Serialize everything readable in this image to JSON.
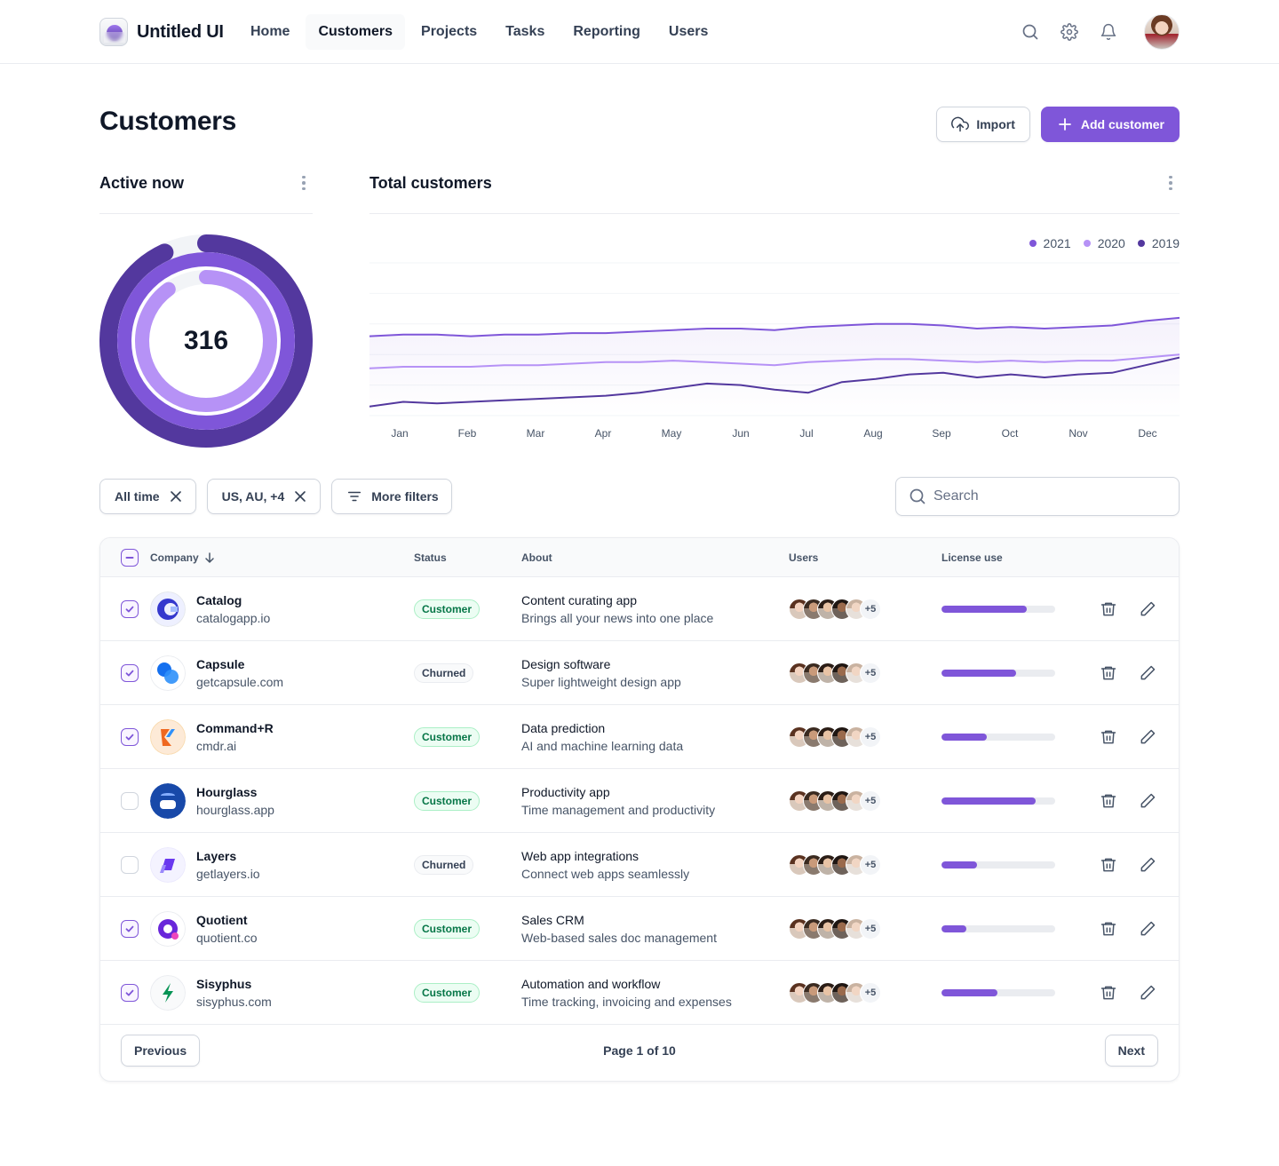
{
  "brand": {
    "name": "Untitled UI"
  },
  "nav": {
    "links": [
      {
        "label": "Home",
        "active": false
      },
      {
        "label": "Customers",
        "active": true
      },
      {
        "label": "Projects",
        "active": false
      },
      {
        "label": "Tasks",
        "active": false
      },
      {
        "label": "Reporting",
        "active": false
      },
      {
        "label": "Users",
        "active": false
      }
    ],
    "icons": [
      "search-icon",
      "gear-icon",
      "bell-icon"
    ]
  },
  "header": {
    "title": "Customers",
    "import_label": "Import",
    "add_label": "Add customer"
  },
  "active_now": {
    "title": "Active now",
    "value": "316",
    "rings": [
      {
        "name": "outer",
        "fraction": 0.93,
        "color": "#53389e"
      },
      {
        "name": "middle",
        "fraction": 0.999,
        "color": "#7f56d9"
      },
      {
        "name": "inner",
        "fraction": 0.9,
        "color": "#b692f6"
      }
    ]
  },
  "total_customers": {
    "title": "Total customers"
  },
  "colors": {
    "accent": "#7f56d9",
    "accent_light": "#b692f6",
    "accent_dark": "#53389e",
    "success_text": "#067647"
  },
  "chart_data": {
    "type": "line",
    "x": [
      "Jan",
      "Jan",
      "Feb",
      "Feb",
      "Mar",
      "Mar",
      "Apr",
      "Apr",
      "May",
      "May",
      "Jun",
      "Jun",
      "Jul",
      "Jul",
      "Aug",
      "Aug",
      "Sep",
      "Sep",
      "Oct",
      "Oct",
      "Nov",
      "Nov",
      "Dec",
      "Dec",
      "Dec"
    ],
    "categories": [
      "Jan",
      "Feb",
      "Mar",
      "Apr",
      "May",
      "Jun",
      "Jul",
      "Aug",
      "Sep",
      "Oct",
      "Nov",
      "Dec"
    ],
    "series": [
      {
        "name": "2021",
        "color": "#7f56d9",
        "values": [
          52,
          53,
          53,
          52,
          53,
          53,
          54,
          54,
          55,
          56,
          57,
          57,
          56,
          58,
          59,
          60,
          60,
          59,
          57,
          58,
          57,
          58,
          59,
          62,
          64
        ]
      },
      {
        "name": "2020",
        "color": "#b692f6",
        "values": [
          31,
          32,
          32,
          32,
          33,
          33,
          34,
          35,
          35,
          36,
          35,
          34,
          33,
          35,
          36,
          37,
          37,
          36,
          35,
          36,
          35,
          36,
          36,
          38,
          40
        ]
      },
      {
        "name": "2019",
        "color": "#53389e",
        "values": [
          6,
          9,
          8,
          9,
          10,
          11,
          12,
          13,
          15,
          18,
          21,
          20,
          17,
          15,
          22,
          24,
          27,
          28,
          25,
          27,
          25,
          27,
          28,
          33,
          38
        ]
      }
    ],
    "ylim": [
      0,
      100
    ],
    "grid": true,
    "legend": "top-right",
    "title": "",
    "xlabel": "",
    "ylabel": ""
  },
  "filters": {
    "chips": [
      {
        "label": "All time",
        "removable": true
      },
      {
        "label": "US, AU, +4",
        "removable": true
      },
      {
        "label": "More filters",
        "removable": false
      }
    ],
    "search_placeholder": "Search"
  },
  "table": {
    "columns": [
      "Company",
      "Status",
      "About",
      "Users",
      "License use"
    ],
    "more_users": "+5",
    "rows": [
      {
        "checked": true,
        "name": "Catalog",
        "domain": "catalogapp.io",
        "status": "Customer",
        "about_title": "Content curating app",
        "about_sub": "Brings all your news into one place",
        "license": 0.75,
        "logo": "catalog-logo-icon"
      },
      {
        "checked": true,
        "name": "Capsule",
        "domain": "getcapsule.com",
        "status": "Churned",
        "about_title": "Design software",
        "about_sub": "Super lightweight design app",
        "license": 0.66,
        "logo": "capsule-logo-icon"
      },
      {
        "checked": true,
        "name": "Command+R",
        "domain": "cmdr.ai",
        "status": "Customer",
        "about_title": "Data prediction",
        "about_sub": "AI and machine learning data",
        "license": 0.4,
        "logo": "commandr-logo-icon"
      },
      {
        "checked": false,
        "name": "Hourglass",
        "domain": "hourglass.app",
        "status": "Customer",
        "about_title": "Productivity app",
        "about_sub": "Time management and productivity",
        "license": 0.83,
        "logo": "hourglass-logo-icon"
      },
      {
        "checked": false,
        "name": "Layers",
        "domain": "getlayers.io",
        "status": "Churned",
        "about_title": "Web app integrations",
        "about_sub": "Connect web apps seamlessly",
        "license": 0.31,
        "logo": "layers-logo-icon"
      },
      {
        "checked": true,
        "name": "Quotient",
        "domain": "quotient.co",
        "status": "Customer",
        "about_title": "Sales CRM",
        "about_sub": "Web-based sales doc management",
        "license": 0.22,
        "logo": "quotient-logo-icon"
      },
      {
        "checked": true,
        "name": "Sisyphus",
        "domain": "sisyphus.com",
        "status": "Customer",
        "about_title": "Automation and workflow",
        "about_sub": "Time tracking, invoicing and expenses",
        "license": 0.49,
        "logo": "sisyphus-logo-icon"
      }
    ]
  },
  "pagination": {
    "previous_label": "Previous",
    "next_label": "Next",
    "page_info": "Page 1 of 10"
  }
}
